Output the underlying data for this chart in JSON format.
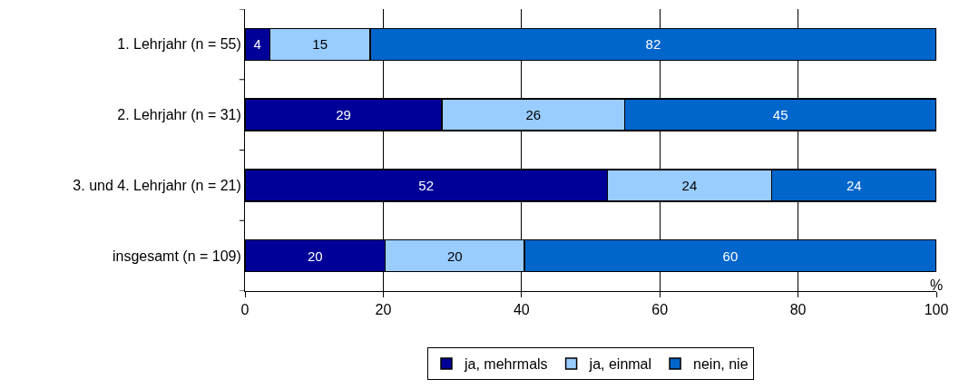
{
  "chart_data": {
    "type": "bar",
    "orientation": "horizontal",
    "stacked": true,
    "xlabel": "%",
    "categories": [
      "1. Lehrjahr (n = 55)",
      "2. Lehrjahr (n = 31)",
      "3. und 4. Lehrjahr (n = 21)",
      "insgesamt (n = 109)"
    ],
    "series": [
      {
        "name": "ja, mehrmals",
        "color": "#000099",
        "values": [
          3.6,
          28.5,
          52.4,
          20.3
        ],
        "value_labels": [
          "4",
          "29",
          "52",
          "20"
        ]
      },
      {
        "name": "ja, einmal",
        "color": "#99ccff",
        "values": [
          14.5,
          26.4,
          23.8,
          20.1
        ],
        "value_labels": [
          "15",
          "26",
          "24",
          "20"
        ]
      },
      {
        "name": "nein, nie",
        "color": "#0066cc",
        "values": [
          81.9,
          45.1,
          23.8,
          59.6
        ],
        "value_labels": [
          "82",
          "45",
          "24",
          "60"
        ]
      }
    ],
    "xlim": [
      0,
      100
    ],
    "xticks": [
      0,
      20,
      40,
      60,
      80,
      100
    ],
    "grid": "x",
    "legend": "bottom"
  }
}
